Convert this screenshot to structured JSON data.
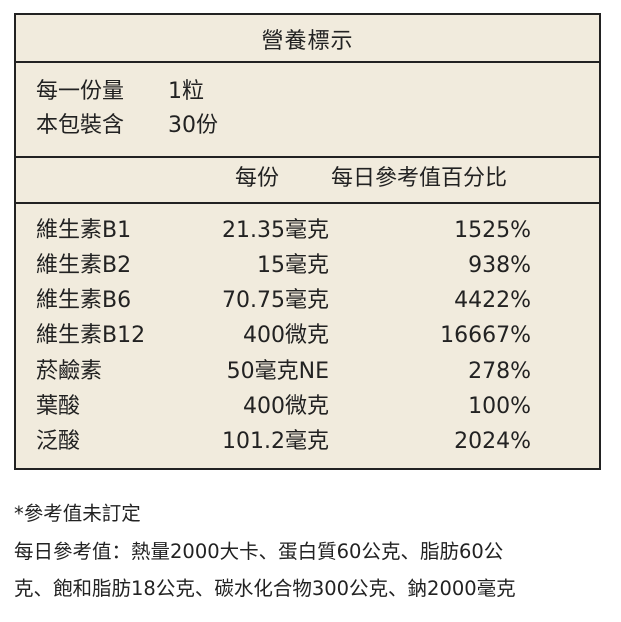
{
  "title": "營養標示",
  "serving": {
    "size_label": "每一份量",
    "size_value": "1粒",
    "count_label": "本包裝含",
    "count_value": "30份"
  },
  "columns": {
    "per_serving": "每份",
    "daily_value": "每日參考值百分比"
  },
  "nutrients": [
    {
      "name": "維生素B1",
      "amount": "21.35毫克",
      "percent": "1525%"
    },
    {
      "name": "維生素B2",
      "amount": "15毫克",
      "percent": "938%"
    },
    {
      "name": "維生素B6",
      "amount": "70.75毫克",
      "percent": "4422%"
    },
    {
      "name": "維生素B12",
      "amount": "400微克",
      "percent": "16667%"
    },
    {
      "name": "菸鹼素",
      "amount": "50毫克NE",
      "percent": "278%"
    },
    {
      "name": "葉酸",
      "amount": "400微克",
      "percent": "100%"
    },
    {
      "name": "泛酸",
      "amount": "101.2毫克",
      "percent": "2024%"
    }
  ],
  "footnotes": {
    "note1": "*參考值未訂定",
    "note2_line1": "每日參考值：熱量2000大卡、蛋白質60公克、脂肪60公",
    "note2_line2": "克、飽和脂肪18公克、碳水化合物300公克、鈉2000毫克"
  }
}
